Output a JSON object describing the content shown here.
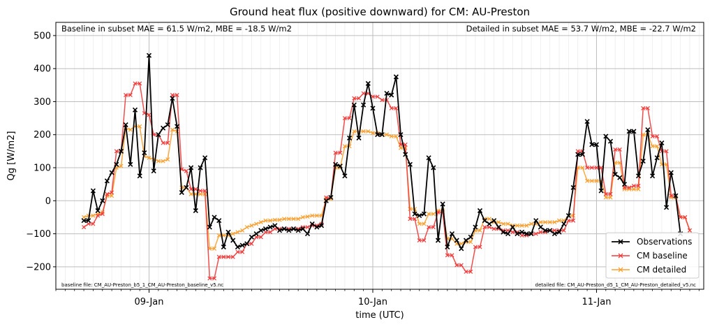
{
  "chart_data": {
    "type": "line",
    "title": "Ground heat flux (positive downward) for CM: AU-Preston",
    "xlabel": "time (UTC)",
    "ylabel": "Qg [W/m2]",
    "x_tick_labels": [
      "09-Jan",
      "10-Jan",
      "11-Jan"
    ],
    "x_tick_hours": [
      24,
      48,
      72
    ],
    "y_ticks": [
      -200,
      -100,
      0,
      100,
      200,
      300,
      400,
      500
    ],
    "y_tick_labels": [
      "−200",
      "−100",
      "0",
      "100",
      "200",
      "300",
      "400",
      "500"
    ],
    "xlim_hours": [
      14,
      83.5
    ],
    "ylim": [
      -268,
      540
    ],
    "grid": true,
    "legend_position": "lower-right",
    "annotations": {
      "top_left": "Baseline in subset MAE = 61.5 W/m2, MBE = -18.5 W/m2",
      "top_right": "Detailed in subset MAE = 53.7 W/m2, MBE = -22.7 W/m2",
      "bottom_left": "baseline file: CM_AU-Preston_b5_1_CM_AU-Preston_baseline_v5.nc",
      "bottom_right": "detailed file: CM_AU-Preston_d5_1_CM_AU-Preston_detailed_v5.nc"
    },
    "x_start_hour": 17,
    "x_step_hours": 0.5,
    "series": [
      {
        "name": "Observations",
        "color": "#000000",
        "values": [
          -60,
          -60,
          30,
          -30,
          0,
          60,
          85,
          110,
          150,
          230,
          110,
          275,
          75,
          145,
          440,
          90,
          200,
          220,
          230,
          310,
          225,
          25,
          40,
          100,
          -30,
          100,
          130,
          -80,
          -50,
          -60,
          -140,
          -95,
          -120,
          -140,
          -135,
          -130,
          -110,
          -100,
          -90,
          -85,
          -80,
          -75,
          -90,
          -85,
          -90,
          -85,
          -90,
          -85,
          -100,
          -70,
          -80,
          -75,
          0,
          10,
          110,
          105,
          75,
          190,
          290,
          190,
          290,
          355,
          280,
          200,
          200,
          325,
          320,
          375,
          200,
          140,
          110,
          -40,
          -45,
          -40,
          130,
          100,
          -120,
          -10,
          -140,
          -100,
          -120,
          -145,
          -120,
          -110,
          -80,
          -30,
          -60,
          -70,
          -60,
          -80,
          -95,
          -100,
          -80,
          -100,
          -95,
          -100,
          -100,
          -60,
          -80,
          -90,
          -90,
          -100,
          -95,
          -70,
          -45,
          40,
          140,
          140,
          240,
          170,
          170,
          30,
          195,
          180,
          80,
          70,
          50,
          210,
          210,
          75,
          120,
          215,
          75,
          130,
          175,
          -20,
          85,
          15,
          -100
        ]
      },
      {
        "name": "CM baseline",
        "color": "#f03a3a",
        "values": [
          -80,
          -70,
          -70,
          -45,
          -40,
          20,
          25,
          150,
          150,
          320,
          320,
          355,
          355,
          265,
          260,
          200,
          200,
          175,
          175,
          320,
          320,
          95,
          90,
          35,
          35,
          30,
          30,
          -235,
          -235,
          -170,
          -170,
          -170,
          -170,
          -155,
          -155,
          -130,
          -130,
          -110,
          -110,
          -95,
          -95,
          -85,
          -85,
          -85,
          -85,
          -85,
          -85,
          -80,
          -80,
          -75,
          -75,
          -70,
          10,
          10,
          145,
          145,
          250,
          250,
          310,
          310,
          325,
          325,
          315,
          315,
          305,
          305,
          280,
          280,
          170,
          170,
          -55,
          -55,
          -120,
          -120,
          -80,
          -80,
          -35,
          -35,
          -165,
          -165,
          -195,
          -195,
          -215,
          -215,
          -140,
          -140,
          -80,
          -80,
          -85,
          -85,
          -90,
          -90,
          -95,
          -95,
          -105,
          -105,
          -100,
          -100,
          -95,
          -95,
          -90,
          -90,
          -90,
          -90,
          -60,
          -60,
          150,
          150,
          100,
          100,
          100,
          100,
          20,
          20,
          155,
          155,
          40,
          40,
          45,
          45,
          280,
          280,
          195,
          195,
          150,
          150,
          15,
          15,
          -50,
          -50,
          -90
        ]
      },
      {
        "name": "CM detailed",
        "color": "#f7a030",
        "values": [
          -50,
          -45,
          -45,
          -40,
          -35,
          15,
          15,
          100,
          105,
          220,
          215,
          225,
          225,
          135,
          130,
          125,
          120,
          120,
          125,
          215,
          210,
          40,
          40,
          20,
          20,
          20,
          20,
          -145,
          -145,
          -105,
          -105,
          -105,
          -100,
          -95,
          -90,
          -80,
          -75,
          -70,
          -65,
          -60,
          -60,
          -58,
          -58,
          -55,
          -55,
          -55,
          -55,
          -50,
          -48,
          -45,
          -45,
          -45,
          5,
          5,
          100,
          100,
          165,
          165,
          210,
          210,
          210,
          210,
          205,
          205,
          200,
          200,
          195,
          195,
          160,
          160,
          -25,
          -25,
          -70,
          -70,
          -40,
          -40,
          -30,
          -30,
          -115,
          -115,
          -130,
          -130,
          -125,
          -125,
          -90,
          -90,
          -55,
          -55,
          -65,
          -65,
          -70,
          -70,
          -75,
          -75,
          -75,
          -75,
          -70,
          -70,
          -65,
          -65,
          -65,
          -65,
          -60,
          -60,
          -45,
          -45,
          100,
          100,
          60,
          60,
          60,
          60,
          10,
          10,
          115,
          115,
          35,
          35,
          35,
          35,
          200,
          200,
          165,
          165,
          110,
          110,
          10,
          10,
          -50,
          -50,
          -90
        ]
      }
    ]
  }
}
